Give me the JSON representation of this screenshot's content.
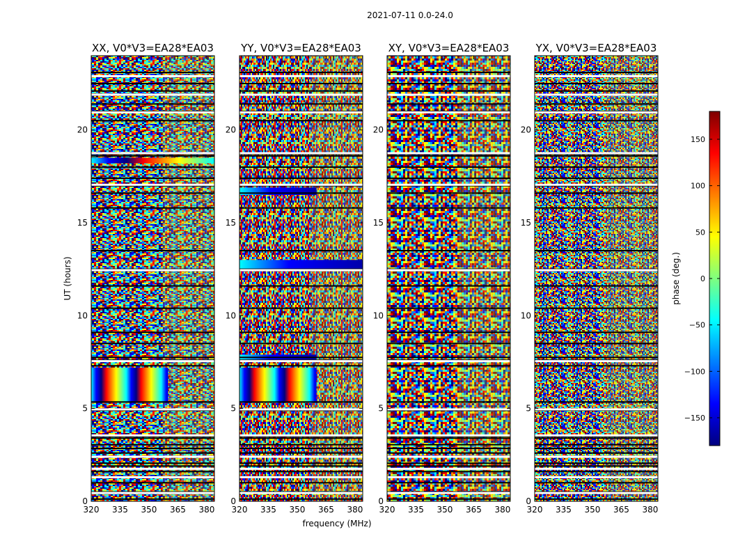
{
  "figure_title": "2021-07-11 0.0-24.0",
  "chart_data": [
    {
      "type": "heatmap",
      "title": "XX, V0*V3=EA28*EA03",
      "xlabel": "",
      "ylabel": "UT (hours)",
      "xlim": [
        320,
        384
      ],
      "ylim": [
        0,
        24
      ],
      "x_ticks": [
        320,
        335,
        350,
        365,
        380
      ],
      "y_ticks": [
        0,
        5,
        10,
        15,
        20
      ],
      "coherent_features": [
        {
          "hours": [
            5.3,
            7.2
          ],
          "freq_mhz": [
            320,
            360
          ],
          "description": "phase wraps"
        },
        {
          "hours": [
            18.2,
            18.5
          ],
          "freq_mhz": [
            320,
            384
          ],
          "description": "phase gradient"
        }
      ]
    },
    {
      "type": "heatmap",
      "title": "YY, V0*V3=EA28*EA03",
      "xlabel": "frequency (MHz)",
      "ylabel": "",
      "xlim": [
        320,
        384
      ],
      "ylim": [
        0,
        24
      ],
      "x_ticks": [
        320,
        335,
        350,
        365,
        380
      ],
      "y_ticks": [
        0,
        5,
        10,
        15,
        20
      ],
      "coherent_features": [
        {
          "hours": [
            5.3,
            7.2
          ],
          "freq_mhz": [
            320,
            360
          ],
          "description": "phase wraps"
        },
        {
          "hours": [
            12.5,
            13.0
          ],
          "freq_mhz": [
            320,
            384
          ],
          "description": "blue band"
        },
        {
          "hours": [
            16.5,
            16.9
          ],
          "freq_mhz": [
            320,
            360
          ],
          "description": "blue band"
        },
        {
          "hours": [
            7.6,
            7.9
          ],
          "freq_mhz": [
            320,
            360
          ],
          "description": "blue band"
        }
      ]
    },
    {
      "type": "heatmap",
      "title": "XY, V0*V3=EA28*EA03",
      "xlabel": "",
      "ylabel": "",
      "xlim": [
        320,
        384
      ],
      "ylim": [
        0,
        24
      ],
      "x_ticks": [
        320,
        335,
        350,
        365,
        380
      ],
      "y_ticks": [
        0,
        5,
        10,
        15,
        20
      ],
      "coherent_features": []
    },
    {
      "type": "heatmap",
      "title": "YX, V0*V3=EA28*EA03",
      "xlabel": "",
      "ylabel": "",
      "xlim": [
        320,
        384
      ],
      "ylim": [
        0,
        24
      ],
      "x_ticks": [
        320,
        335,
        350,
        365,
        380
      ],
      "y_ticks": [
        0,
        5,
        10,
        15,
        20
      ],
      "coherent_features": []
    }
  ],
  "shared": {
    "flagged_hours": [
      0.12,
      0.5,
      1.0,
      1.33,
      1.6,
      1.9,
      2.05,
      2.6,
      2.85,
      3.05,
      3.4,
      3.5,
      4.9,
      5.35,
      7.3,
      7.6,
      7.75,
      8.5,
      9.1,
      10.4,
      11.6,
      12.5,
      13.5,
      15.8,
      16.6,
      17.0,
      17.4,
      18.0,
      18.6,
      18.7,
      20.5,
      21.0,
      21.4,
      22.1,
      22.5,
      23.1
    ],
    "white_gap_hours": [
      0.45,
      1.3,
      1.75,
      2.4,
      3.55,
      4.95,
      7.55,
      12.45,
      17.05,
      18.75,
      20.95,
      21.9,
      22.9
    ]
  },
  "colorbar": {
    "label": "phase (deg.)",
    "range": [
      -180,
      180
    ],
    "ticks": [
      150,
      100,
      50,
      0,
      -50,
      -100,
      -150
    ],
    "tick_labels": [
      "150",
      "100",
      "50",
      "0",
      "−50",
      "−100",
      "−150"
    ],
    "colormap": "jet",
    "colors": [
      "#00007f",
      "#0000ff",
      "#007fff",
      "#00ffff",
      "#7fff7f",
      "#ffff00",
      "#ff7f00",
      "#ff0000",
      "#7f0000"
    ]
  }
}
